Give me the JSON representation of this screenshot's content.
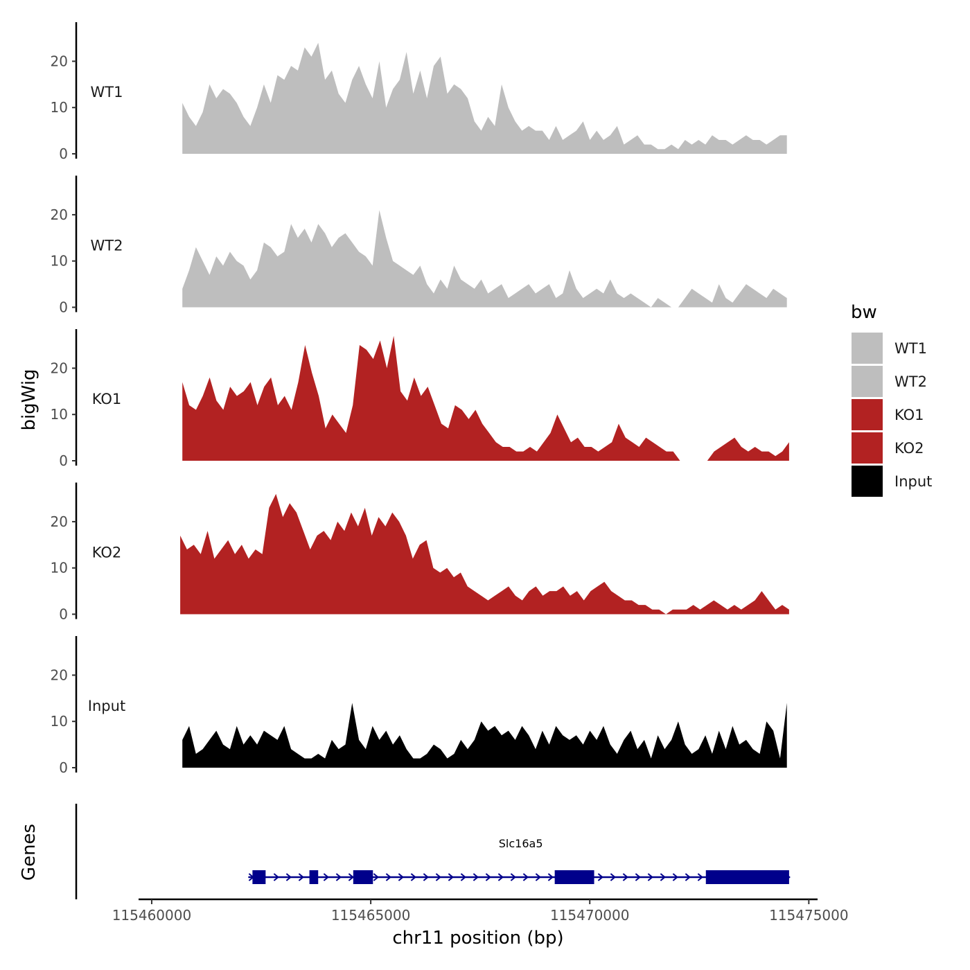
{
  "chart_data": {
    "type": "area",
    "chromosome": "chr11",
    "xlabel": "chr11 position (bp)",
    "ylabel_tracks": "bigWig",
    "ylabel_genes": "Genes",
    "xlim": [
      115459700,
      115475200
    ],
    "x_ticks": [
      115460000,
      115465000,
      115470000,
      115475000
    ],
    "x_tick_labels": [
      "115460000",
      "115465000",
      "115470000",
      "115475000"
    ],
    "ylim": [
      0,
      28
    ],
    "y_ticks": [
      0,
      10,
      20
    ],
    "y_tick_labels": [
      "0",
      "10",
      "20"
    ],
    "legend_title": "bw",
    "legend": [
      {
        "label": "WT1",
        "color": "#BEBEBE"
      },
      {
        "label": "WT2",
        "color": "#BEBEBE"
      },
      {
        "label": "KO1",
        "color": "#B22222"
      },
      {
        "label": "KO2",
        "color": "#B22222"
      },
      {
        "label": "Input",
        "color": "#000000"
      }
    ],
    "tracks": [
      {
        "name": "WT1",
        "color": "#BEBEBE",
        "start": 115460700,
        "end": 115474500,
        "values": [
          11,
          8,
          6,
          9,
          15,
          12,
          14,
          13,
          11,
          8,
          6,
          10,
          15,
          11,
          17,
          16,
          19,
          18,
          23,
          21,
          24,
          16,
          18,
          13,
          11,
          16,
          19,
          15,
          12,
          20,
          10,
          14,
          16,
          22,
          13,
          18,
          12,
          19,
          21,
          13,
          15,
          14,
          12,
          7,
          5,
          8,
          6,
          15,
          10,
          7,
          5,
          6,
          5,
          5,
          3,
          6,
          3,
          4,
          5,
          7,
          3,
          5,
          3,
          4,
          6,
          2,
          3,
          4,
          2,
          2,
          1,
          1,
          2,
          1,
          3,
          2,
          3,
          2,
          4,
          3,
          3,
          2,
          3,
          4,
          3,
          3,
          2,
          3,
          4,
          4
        ]
      },
      {
        "name": "WT2",
        "color": "#BEBEBE",
        "start": 115460700,
        "end": 115474500,
        "values": [
          4,
          8,
          13,
          10,
          7,
          11,
          9,
          12,
          10,
          9,
          6,
          8,
          14,
          13,
          11,
          12,
          18,
          15,
          17,
          14,
          18,
          16,
          13,
          15,
          16,
          14,
          12,
          11,
          9,
          21,
          15,
          10,
          9,
          8,
          7,
          9,
          5,
          3,
          6,
          4,
          9,
          6,
          5,
          4,
          6,
          3,
          4,
          5,
          2,
          3,
          4,
          5,
          3,
          4,
          5,
          2,
          3,
          8,
          4,
          2,
          3,
          4,
          3,
          6,
          3,
          2,
          3,
          2,
          1,
          0,
          2,
          1,
          0,
          0,
          2,
          4,
          3,
          2,
          1,
          5,
          2,
          1,
          3,
          5,
          4,
          3,
          2,
          4,
          3,
          2
        ]
      },
      {
        "name": "KO1",
        "color": "#B22222",
        "start": 115460700,
        "end": 115474550,
        "values": [
          17,
          12,
          11,
          14,
          18,
          13,
          11,
          16,
          14,
          15,
          17,
          12,
          16,
          18,
          12,
          14,
          11,
          17,
          25,
          19,
          14,
          7,
          10,
          8,
          6,
          12,
          25,
          24,
          22,
          26,
          20,
          27,
          15,
          13,
          18,
          14,
          16,
          12,
          8,
          7,
          12,
          11,
          9,
          11,
          8,
          6,
          4,
          3,
          3,
          2,
          2,
          3,
          2,
          4,
          6,
          10,
          7,
          4,
          5,
          3,
          3,
          2,
          3,
          4,
          8,
          5,
          4,
          3,
          5,
          4,
          3,
          2,
          2,
          0,
          0,
          0,
          0,
          0,
          2,
          3,
          4,
          5,
          3,
          2,
          3,
          2,
          2,
          1,
          2,
          4
        ]
      },
      {
        "name": "KO2",
        "color": "#B22222",
        "start": 115460650,
        "end": 115474550,
        "values": [
          17,
          14,
          15,
          13,
          18,
          12,
          14,
          16,
          13,
          15,
          12,
          14,
          13,
          23,
          26,
          21,
          24,
          22,
          18,
          14,
          17,
          18,
          16,
          20,
          18,
          22,
          19,
          23,
          17,
          21,
          19,
          22,
          20,
          17,
          12,
          15,
          16,
          10,
          9,
          10,
          8,
          9,
          6,
          5,
          4,
          3,
          4,
          5,
          6,
          4,
          3,
          5,
          6,
          4,
          5,
          5,
          6,
          4,
          5,
          3,
          5,
          6,
          7,
          5,
          4,
          3,
          3,
          2,
          2,
          1,
          1,
          0,
          1,
          1,
          1,
          2,
          1,
          2,
          3,
          2,
          1,
          2,
          1,
          2,
          3,
          5,
          3,
          1,
          2,
          1
        ]
      },
      {
        "name": "Input",
        "color": "#000000",
        "start": 115460700,
        "end": 115474500,
        "values": [
          6,
          9,
          3,
          4,
          6,
          8,
          5,
          4,
          9,
          5,
          7,
          5,
          8,
          7,
          6,
          9,
          4,
          3,
          2,
          2,
          3,
          2,
          6,
          4,
          5,
          14,
          6,
          4,
          9,
          6,
          8,
          5,
          7,
          4,
          2,
          2,
          3,
          5,
          4,
          2,
          3,
          6,
          4,
          6,
          10,
          8,
          9,
          7,
          8,
          6,
          9,
          7,
          4,
          8,
          5,
          9,
          7,
          6,
          7,
          5,
          8,
          6,
          9,
          5,
          3,
          6,
          8,
          4,
          6,
          2,
          7,
          4,
          6,
          10,
          5,
          3,
          4,
          7,
          3,
          8,
          4,
          9,
          5,
          6,
          4,
          3,
          10,
          8,
          2,
          14
        ]
      }
    ],
    "genes": [
      {
        "name": "Slc16a5",
        "strand": "+",
        "start": 115462300,
        "end": 115474550,
        "exons": [
          [
            115462300,
            115462600
          ],
          [
            115463600,
            115463800
          ],
          [
            115464600,
            115465050
          ],
          [
            115469200,
            115470100
          ],
          [
            115472650,
            115474550
          ]
        ]
      }
    ],
    "gene_color": "#00008B"
  }
}
